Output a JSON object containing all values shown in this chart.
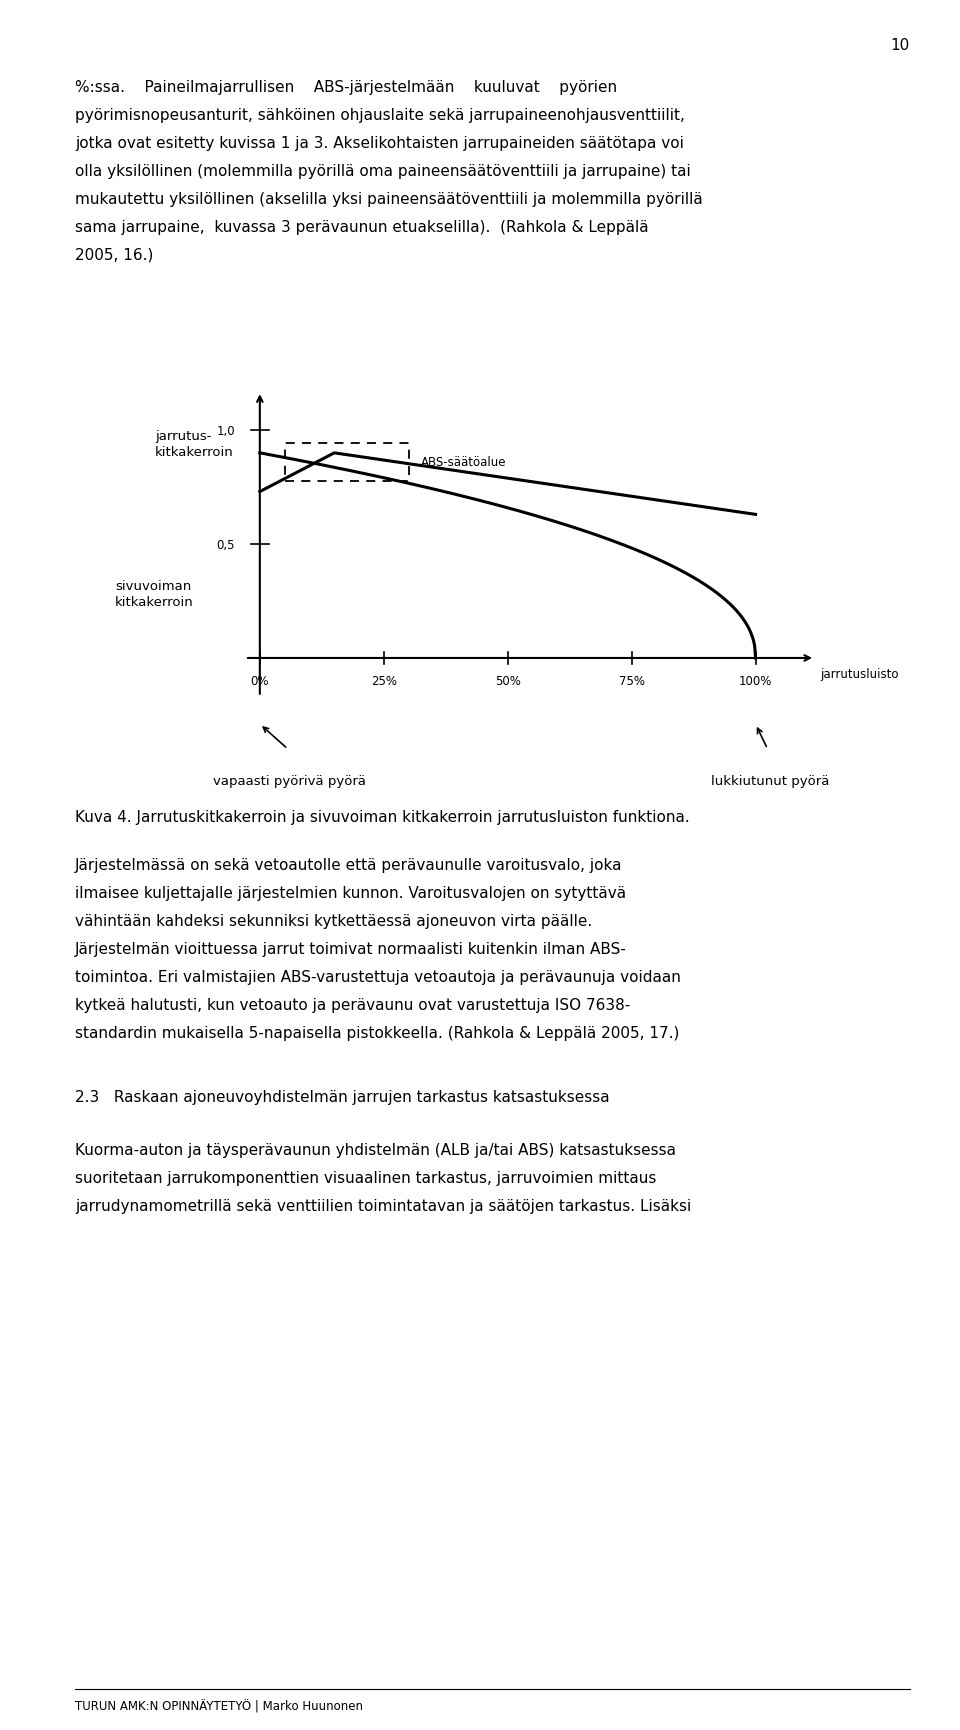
{
  "page_number": "10",
  "p1_line1": "%:ssa.    Paineilmajarrullisen    ABS-järjestelmään    kuuluvat    pyörien",
  "p1_line2": "pyörimisnopeusanturit, sähköinen ohjauslaite sekä jarrupaineenohjausventtiilit,",
  "p1_line3": "jotka ovat esitetty kuvissa 1 ja 3. Akselikohtaisten jarrupaineiden säätötapa voi",
  "p1_line4": "olla yksilöllinen (molemmilla pyörillä oma paineensäätöventtiili ja jarrupaine) tai",
  "p1_line5": "mukautettu yksilöllinen (akselilla yksi paineensäätöventtiili ja molemmilla pyörillä",
  "p1_line6": "sama jarrupaine,  kuvassa 3 perävaunun etuakselilla).  (Rahkola & Leppälä",
  "p1_line7": "2005, 16.)",
  "ylabel_top1": "jarrutus-",
  "ylabel_top2": "kitkakerroin",
  "ylabel_bot1": "sivuvoiman",
  "ylabel_bot2": "kitkakerroin",
  "tick_10": "1,0",
  "tick_05": "0,5",
  "xtick_labels": [
    "0%",
    "25%",
    "50%",
    "75%",
    "100%"
  ],
  "xlabel_right": "jarrutusluisto",
  "abs_label": "ABS-säätöalue",
  "ann1": "vapaasti pyörivä pyörä",
  "ann2": "lukkiutunut pyörä",
  "caption": "Kuva 4. Jarrutuskitkakerroin ja sivuvoiman kitkakerroin jarrutusluiston funktiona.",
  "p2_line1": "Järjestelmässä on sekä vetoautolle että perävaunulle varoitusvalo, joka",
  "p2_line2": "ilmaisee kuljettajalle järjestelmien kunnon. Varoitusvalojen on sytyttävä",
  "p2_line3": "vähintään kahdeksi sekunniksi kytkettäessä ajoneuvon virta päälle.",
  "p2_line4": "Järjestelmän vioittuessa jarrut toimivat normaalisti kuitenkin ilman ABS-",
  "p2_line5": "toimintoa. Eri valmistajien ABS-varustettuja vetoautoja ja perävaunuja voidaan",
  "p2_line6": "kytkeä halutusti, kun vetoauto ja perävaunu ovat varustettuja ISO 7638-",
  "p2_line7": "standardin mukaisella 5-napaisella pistokkeella. (Rahkola & Leppälä 2005, 17.)",
  "section": "2.3   Raskaan ajoneuvoyhdistelmän jarrujen tarkastus katsastuksessa",
  "p3_line1": "Kuorma-auton ja täysperävaunun yhdistelmän (ALB ja/tai ABS) katsastuksessa",
  "p3_line2": "suoritetaan jarrukomponenttien visuaalinen tarkastus, jarruvoimien mittaus",
  "p3_line3": "jarrudynamometrillä sekä venttiilien toimintatavan ja säätöjen tarkastus. Lisäksi",
  "footer_text": "TURUN AMK:N OPINNÄYTETYÖ | Marko Huunonen",
  "bg_color": "#ffffff",
  "text_color": "#000000"
}
